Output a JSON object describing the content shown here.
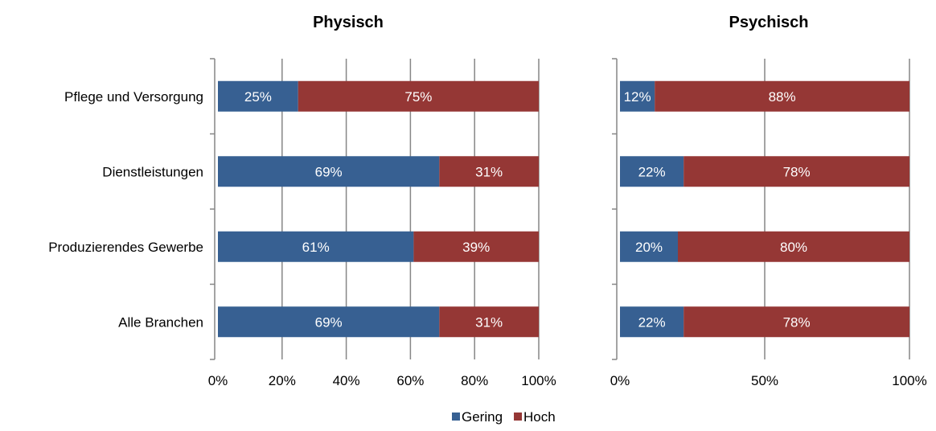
{
  "chart_data": [
    {
      "type": "bar",
      "orientation": "horizontal",
      "stacked": "percent",
      "title": "Physisch",
      "categories": [
        "Pflege und Versorgung",
        "Dienstleistungen",
        "Produzierendes Gewerbe",
        "Alle Branchen"
      ],
      "series": [
        {
          "name": "Gering",
          "color": "#376092",
          "values": [
            25,
            69,
            61,
            69
          ],
          "labels": [
            "25%",
            "69%",
            "61%",
            "69%"
          ]
        },
        {
          "name": "Hoch",
          "color": "#953735",
          "values": [
            75,
            31,
            39,
            31
          ],
          "labels": [
            "75%",
            "31%",
            "39%",
            "31%"
          ]
        }
      ],
      "xlim": [
        0,
        100
      ],
      "xticks": [
        0,
        20,
        40,
        60,
        80,
        100
      ],
      "xtick_labels": [
        "0%",
        "20%",
        "40%",
        "60%",
        "80%",
        "100%"
      ],
      "grid": true
    },
    {
      "type": "bar",
      "orientation": "horizontal",
      "stacked": "percent",
      "title": "Psychisch",
      "categories": [
        "Pflege und Versorgung",
        "Dienstleistungen",
        "Produzierendes Gewerbe",
        "Alle Branchen"
      ],
      "series": [
        {
          "name": "Gering",
          "color": "#376092",
          "values": [
            12,
            22,
            20,
            22
          ],
          "labels": [
            "12%",
            "22%",
            "20%",
            "22%"
          ]
        },
        {
          "name": "Hoch",
          "color": "#953735",
          "values": [
            88,
            78,
            80,
            78
          ],
          "labels": [
            "88%",
            "78%",
            "80%",
            "78%"
          ]
        }
      ],
      "xlim": [
        0,
        100
      ],
      "xticks": [
        0,
        50,
        100
      ],
      "xtick_labels": [
        "0%",
        "50%",
        "100%"
      ],
      "grid": true
    }
  ],
  "legend": {
    "position": "bottom",
    "items": [
      {
        "name": "Gering",
        "color": "#376092"
      },
      {
        "name": "Hoch",
        "color": "#953735"
      }
    ]
  }
}
